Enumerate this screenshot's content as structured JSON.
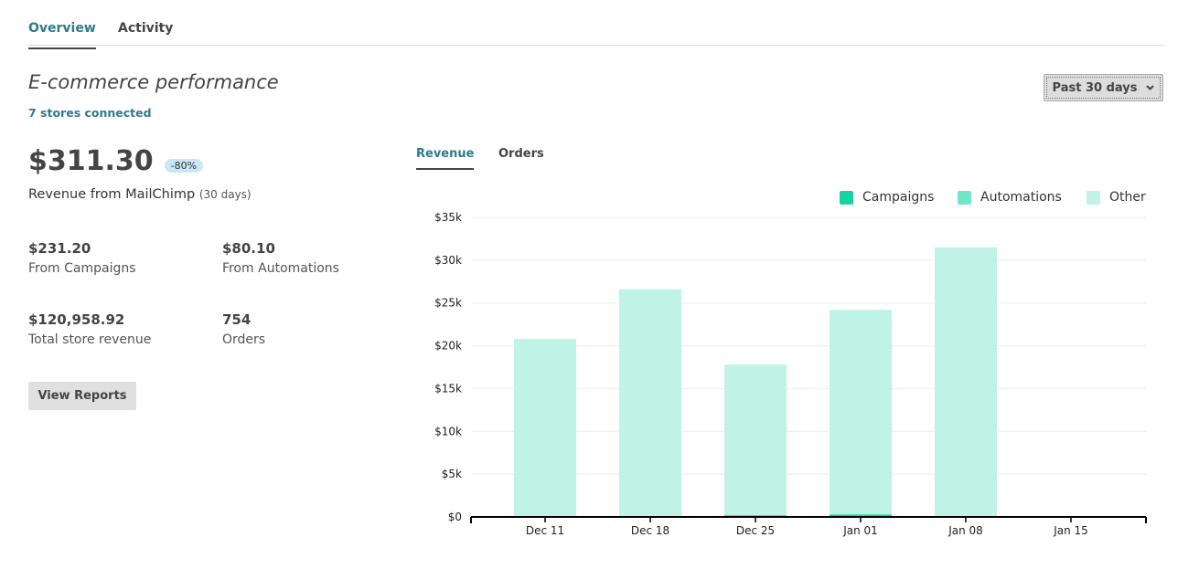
{
  "tabs": [
    {
      "label": "Overview",
      "active": true
    },
    {
      "label": "Activity",
      "active": false
    }
  ],
  "section": {
    "title": "E-commerce performance",
    "stores_link": "7 stores connected",
    "date_range": "Past 30 days",
    "date_range_icon": "chevron-down-icon"
  },
  "summary": {
    "revenue": "$311.30",
    "change_badge": "-80%",
    "revenue_label": "Revenue from MailChimp",
    "revenue_period": "(30 days)"
  },
  "stats": [
    {
      "value": "$231.20",
      "label": "From Campaigns"
    },
    {
      "value": "$80.10",
      "label": "From Automations"
    },
    {
      "value": "$120,958.92",
      "label": "Total store revenue"
    },
    {
      "value": "754",
      "label": "Orders"
    }
  ],
  "view_reports": "View Reports",
  "chart_tabs": [
    {
      "label": "Revenue",
      "active": true
    },
    {
      "label": "Orders",
      "active": false
    }
  ],
  "colors": {
    "accent": "#2f7a8c",
    "campaigns": "#16d4a2",
    "automations": "#72e6cb",
    "other": "#bff3e5"
  },
  "chart_data": {
    "type": "bar",
    "stacked": true,
    "categories": [
      "Dec 11",
      "Dec 18",
      "Dec 25",
      "Jan 01",
      "Jan 08",
      "Jan 15"
    ],
    "series": [
      {
        "name": "Campaigns",
        "values": [
          0,
          0,
          0.2,
          0.3,
          0,
          0
        ]
      },
      {
        "name": "Automations",
        "values": [
          0,
          0,
          0,
          0,
          0,
          0
        ]
      },
      {
        "name": "Other",
        "values": [
          20.8,
          26.6,
          17.6,
          23.9,
          31.5,
          0
        ]
      }
    ],
    "yunit": "k",
    "ylim": [
      0,
      35
    ],
    "yticks": [
      "$0",
      "$5k",
      "$10k",
      "$15k",
      "$20k",
      "$25k",
      "$30k",
      "$35k"
    ],
    "grid": true,
    "legend": "top-right"
  }
}
